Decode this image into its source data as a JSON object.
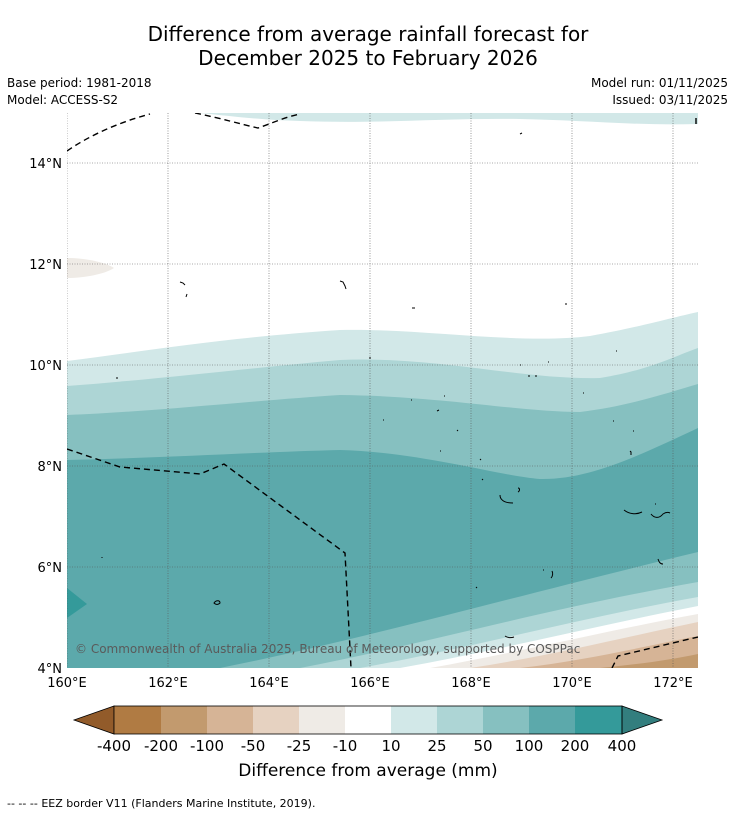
{
  "title": {
    "line1": "Difference from average rainfall forecast for",
    "line2": "December 2025 to February 2026"
  },
  "meta": {
    "base_period": "Base period: 1981-2018",
    "model": "Model: ACCESS-S2",
    "model_run": "Model run: 01/11/2025",
    "issued": "Issued: 03/11/2025"
  },
  "map": {
    "lat_labels": [
      "14°N",
      "12°N",
      "10°N",
      "8°N",
      "6°N",
      "4°N"
    ],
    "lon_labels": [
      "160°E",
      "162°E",
      "164°E",
      "166°E",
      "168°E",
      "170°E",
      "172°E"
    ],
    "copyright": "© Commonwealth of Australia 2025, Bureau of Meteorology, supported by COSPPac"
  },
  "colorbar": {
    "ticks": [
      "-400",
      "-200",
      "-100",
      "-50",
      "-25",
      "-10",
      "10",
      "25",
      "50",
      "100",
      "200",
      "400"
    ],
    "colors": {
      "lt_-400": "#925b2a",
      "b1": "#b07b43",
      "b2": "#c29a6e",
      "b3": "#d6b496",
      "b4": "#e6d2c1",
      "b5": "#efebe6",
      "b6": "#ffffff",
      "b7": "#d2e8e8",
      "b8": "#add5d5",
      "b9": "#86c0c0",
      "b10": "#5ca9ab",
      "b11": "#349a9a",
      "gt_400": "#337e7e"
    },
    "label": "Difference from average (mm)"
  },
  "footnote": {
    "dashes": "--  --  --",
    "text": "EEZ border V11 (Flanders Marine Institute, 2019)."
  }
}
